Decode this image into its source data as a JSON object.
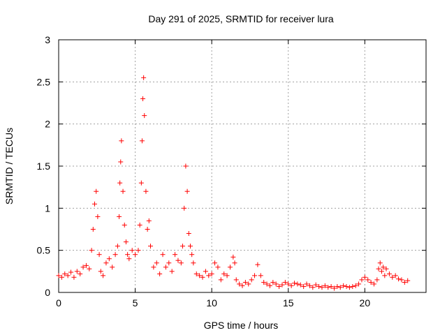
{
  "chart_data": {
    "type": "scatter",
    "title": "Day 291 of 2025, SRMTID for receiver lura",
    "xlabel": "GPS time / hours",
    "ylabel": "SRMTID / TECUs",
    "xlim": [
      0,
      24
    ],
    "ylim": [
      0,
      3
    ],
    "x_ticks": [
      0,
      5,
      10,
      15,
      20
    ],
    "x_tick_labels": [
      "0",
      "5",
      "10",
      "15",
      "20"
    ],
    "y_ticks": [
      0,
      0.5,
      1,
      1.5,
      2,
      2.5,
      3
    ],
    "y_tick_labels": [
      "0",
      "0.5",
      "1",
      "1.5",
      "2",
      "2.5",
      "3"
    ],
    "grid": true,
    "marker": "+",
    "marker_color": "#ff0000",
    "series": [
      {
        "name": "SRMTID",
        "x": [
          0.0,
          0.2,
          0.4,
          0.6,
          0.8,
          1.0,
          1.2,
          1.4,
          1.6,
          1.8,
          2.0,
          2.15,
          2.25,
          2.35,
          2.45,
          2.55,
          2.65,
          2.75,
          2.9,
          3.1,
          3.3,
          3.5,
          3.7,
          3.85,
          3.95,
          4.0,
          4.05,
          4.1,
          4.2,
          4.3,
          4.4,
          4.5,
          4.6,
          4.8,
          5.0,
          5.2,
          5.3,
          5.4,
          5.45,
          5.5,
          5.55,
          5.6,
          5.7,
          5.8,
          5.9,
          6.0,
          6.2,
          6.4,
          6.6,
          6.8,
          7.0,
          7.2,
          7.4,
          7.6,
          7.8,
          8.0,
          8.1,
          8.2,
          8.3,
          8.4,
          8.5,
          8.6,
          8.7,
          8.8,
          9.0,
          9.2,
          9.4,
          9.6,
          9.8,
          10.0,
          10.2,
          10.4,
          10.6,
          10.8,
          11.0,
          11.2,
          11.4,
          11.5,
          11.6,
          11.8,
          12.0,
          12.2,
          12.4,
          12.6,
          12.8,
          13.0,
          13.2,
          13.4,
          13.6,
          13.8,
          14.0,
          14.2,
          14.4,
          14.6,
          14.8,
          15.0,
          15.2,
          15.4,
          15.6,
          15.8,
          16.0,
          16.2,
          16.4,
          16.6,
          16.8,
          17.0,
          17.2,
          17.4,
          17.6,
          17.8,
          18.0,
          18.2,
          18.4,
          18.6,
          18.8,
          19.0,
          19.2,
          19.4,
          19.6,
          19.8,
          20.0,
          20.2,
          20.4,
          20.6,
          20.8,
          20.9,
          21.0,
          21.1,
          21.2,
          21.3,
          21.4,
          21.6,
          21.8,
          22.0,
          22.2,
          22.4,
          22.6,
          22.8
        ],
        "y": [
          0.2,
          0.18,
          0.22,
          0.2,
          0.24,
          0.18,
          0.25,
          0.22,
          0.3,
          0.32,
          0.28,
          0.5,
          0.75,
          1.05,
          1.2,
          0.9,
          0.45,
          0.25,
          0.2,
          0.35,
          0.4,
          0.3,
          0.45,
          0.55,
          0.9,
          1.3,
          1.55,
          1.8,
          1.2,
          0.8,
          0.6,
          0.45,
          0.4,
          0.5,
          0.45,
          0.5,
          0.8,
          1.3,
          1.8,
          2.3,
          2.55,
          2.1,
          1.2,
          0.75,
          0.85,
          0.55,
          0.3,
          0.35,
          0.22,
          0.45,
          0.3,
          0.35,
          0.25,
          0.45,
          0.38,
          0.35,
          0.55,
          1.0,
          1.5,
          1.2,
          0.7,
          0.55,
          0.45,
          0.35,
          0.22,
          0.2,
          0.18,
          0.25,
          0.2,
          0.22,
          0.35,
          0.3,
          0.15,
          0.22,
          0.2,
          0.3,
          0.42,
          0.35,
          0.15,
          0.1,
          0.08,
          0.12,
          0.1,
          0.15,
          0.2,
          0.33,
          0.2,
          0.12,
          0.1,
          0.08,
          0.12,
          0.1,
          0.07,
          0.09,
          0.12,
          0.1,
          0.08,
          0.11,
          0.1,
          0.09,
          0.07,
          0.1,
          0.08,
          0.06,
          0.09,
          0.07,
          0.06,
          0.08,
          0.06,
          0.07,
          0.05,
          0.07,
          0.06,
          0.08,
          0.07,
          0.06,
          0.07,
          0.08,
          0.1,
          0.15,
          0.18,
          0.15,
          0.12,
          0.1,
          0.15,
          0.28,
          0.35,
          0.25,
          0.3,
          0.2,
          0.28,
          0.22,
          0.18,
          0.2,
          0.16,
          0.15,
          0.12,
          0.14
        ]
      }
    ]
  }
}
